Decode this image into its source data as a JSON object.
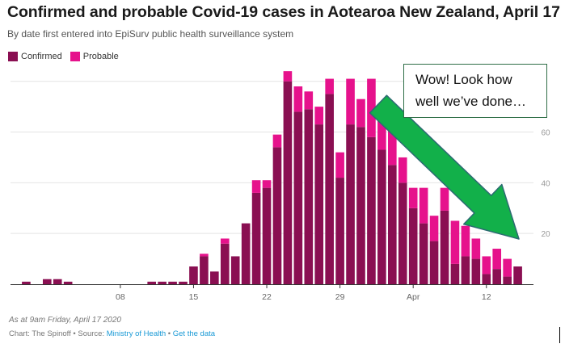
{
  "title": "Confirmed and probable Covid-19 cases in Aotearoa New Zealand, April 17",
  "subtitle": "By date first entered into EpiSurv public health surveillance system",
  "legend": [
    {
      "label": "Confirmed",
      "color": "#8a0f52"
    },
    {
      "label": "Probable",
      "color": "#e6128c"
    }
  ],
  "callout": {
    "line1": "Wow! Look how",
    "line2": "well we’ve done…",
    "arrow_color": "#12b04a"
  },
  "footer": {
    "note": "As at 9am Friday, April 17 2020",
    "source_prefix": "Chart: The Spinoff • Source: ",
    "source_link": "Ministry of Health",
    "separator": " • ",
    "data_link": "Get the data"
  },
  "chart_data": {
    "type": "bar",
    "stacked": true,
    "xlabel": "",
    "ylabel": "",
    "ylim": [
      0,
      85
    ],
    "y_ticks": [
      20,
      40,
      60
    ],
    "x_tick_labels": [
      {
        "index": 10,
        "label": "08"
      },
      {
        "index": 17,
        "label": "15"
      },
      {
        "index": 24,
        "label": "22"
      },
      {
        "index": 31,
        "label": "29"
      },
      {
        "index": 38,
        "label": "Apr"
      },
      {
        "index": 45,
        "label": "12"
      }
    ],
    "categories": [
      "Feb 27",
      "Feb 28",
      "Feb 29",
      "Mar 1",
      "Mar 2",
      "Mar 3",
      "Mar 4",
      "Mar 5",
      "Mar 6",
      "Mar 7",
      "Mar 8",
      "Mar 9",
      "Mar 10",
      "Mar 11",
      "Mar 12",
      "Mar 13",
      "Mar 14",
      "Mar 15",
      "Mar 16",
      "Mar 17",
      "Mar 18",
      "Mar 19",
      "Mar 20",
      "Mar 21",
      "Mar 22",
      "Mar 23",
      "Mar 24",
      "Mar 25",
      "Mar 26",
      "Mar 27",
      "Mar 28",
      "Mar 29",
      "Mar 30",
      "Mar 31",
      "Apr 1",
      "Apr 2",
      "Apr 3",
      "Apr 4",
      "Apr 5",
      "Apr 6",
      "Apr 7",
      "Apr 8",
      "Apr 9",
      "Apr 10",
      "Apr 11",
      "Apr 12",
      "Apr 13",
      "Apr 14",
      "Apr 15",
      "Apr 16"
    ],
    "series": [
      {
        "name": "Confirmed",
        "color": "#8a0f52",
        "values": [
          0,
          1,
          0,
          2,
          2,
          1,
          0,
          0,
          0,
          0,
          0,
          0,
          0,
          1,
          1,
          1,
          1,
          7,
          11,
          5,
          16,
          11,
          24,
          36,
          38,
          54,
          80,
          68,
          69,
          63,
          75,
          42,
          63,
          62,
          58,
          53,
          47,
          40,
          30,
          24,
          17,
          29,
          8,
          11,
          10,
          4,
          6,
          3,
          7,
          0
        ]
      },
      {
        "name": "Probable",
        "color": "#e6128c",
        "values": [
          0,
          0,
          0,
          0,
          0,
          0,
          0,
          0,
          0,
          0,
          0,
          0,
          0,
          0,
          0,
          0,
          0,
          0,
          1,
          0,
          2,
          0,
          0,
          5,
          3,
          5,
          4,
          10,
          7,
          7,
          6,
          10,
          18,
          11,
          23,
          18,
          18,
          10,
          8,
          14,
          10,
          9,
          17,
          12,
          8,
          7,
          8,
          7,
          0,
          0
        ]
      }
    ]
  }
}
